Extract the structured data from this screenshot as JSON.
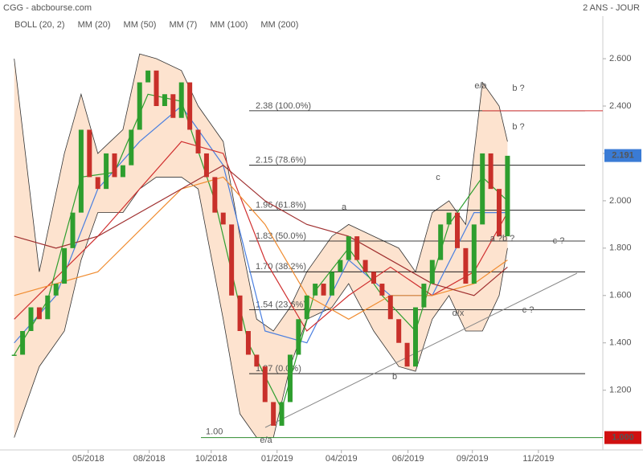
{
  "chart_data": {
    "type": "candlestick",
    "title": "CGG - abcbourse.com",
    "subtitle": "2 ANS - JOUR",
    "xlim": [
      -1.7,
      70.4
    ],
    "xticks": [
      {
        "value": 8.85,
        "label": "05/2018"
      },
      {
        "value": 16.15,
        "label": "08/2018"
      },
      {
        "value": 23.56,
        "label": "10/2018"
      },
      {
        "value": 31.44,
        "label": "01/2019"
      },
      {
        "value": 39.13,
        "label": "04/2019"
      },
      {
        "value": 47.1,
        "label": "06/2019"
      },
      {
        "value": 54.8,
        "label": "09/2019"
      },
      {
        "value": 62.7,
        "label": "11/2019"
      }
    ],
    "ylim": [
      0.88,
      2.78
    ],
    "yticks": [
      {
        "value": 1.2,
        "label": "1.200"
      },
      {
        "value": 1.4,
        "label": "1.400"
      },
      {
        "value": 1.6,
        "label": "1.600"
      },
      {
        "value": 1.8,
        "label": "1.800"
      },
      {
        "value": 2.0,
        "label": "2.000"
      },
      {
        "value": 2.2,
        "label": "2.200"
      },
      {
        "value": 2.4,
        "label": "2.400"
      },
      {
        "value": 2.6,
        "label": "2.600"
      }
    ],
    "up_color": "#2e9e2e",
    "down_color": "#c8302a",
    "values": [
      1.35,
      1.45,
      1.55,
      1.5,
      1.6,
      1.65,
      1.8,
      1.95,
      2.3,
      2.1,
      2.05,
      2.2,
      2.1,
      2.15,
      2.3,
      2.5,
      2.55,
      2.4,
      2.45,
      2.35,
      2.5,
      2.3,
      2.2,
      2.1,
      1.95,
      1.9,
      1.6,
      1.45,
      1.35,
      1.3,
      1.15,
      1.05,
      1.15,
      1.35,
      1.5,
      1.6,
      1.65,
      1.6,
      1.7,
      1.75,
      1.85,
      1.75,
      1.7,
      1.65,
      1.6,
      1.5,
      1.4,
      1.3,
      1.55,
      1.65,
      1.75,
      1.9,
      1.95,
      1.8,
      1.65,
      1.9,
      2.2,
      2.05,
      1.85,
      2.19
    ],
    "last_price": {
      "value": 2.191,
      "label": "2.191",
      "color": "#3a7bd5"
    },
    "band": {
      "name": "BOLL (20, 2)",
      "color": "#333333",
      "fill": "#fde3cf",
      "x": [
        0,
        3,
        6,
        8,
        10,
        13,
        15,
        17,
        20,
        22,
        25,
        27,
        29,
        31,
        33,
        35,
        38,
        40,
        43,
        46,
        48,
        50,
        52,
        54,
        56,
        58,
        59
      ],
      "upper": [
        2.6,
        1.7,
        2.2,
        2.45,
        2.2,
        2.3,
        2.62,
        2.6,
        2.55,
        2.4,
        2.25,
        1.85,
        1.5,
        1.45,
        1.55,
        1.7,
        1.85,
        1.9,
        1.85,
        1.8,
        1.7,
        1.95,
        2.0,
        1.9,
        2.5,
        2.4,
        2.25
      ],
      "lower": [
        1.0,
        1.3,
        1.45,
        1.75,
        1.95,
        1.95,
        2.05,
        2.1,
        2.1,
        2.05,
        1.5,
        1.1,
        1.0,
        1.0,
        1.3,
        1.5,
        1.55,
        1.65,
        1.45,
        1.3,
        1.28,
        1.5,
        1.6,
        1.45,
        1.45,
        1.6,
        1.8
      ]
    },
    "series": [
      {
        "name": "MM (20)",
        "color": "#4a7fe0",
        "x": [
          0,
          5,
          10,
          15,
          20,
          25,
          30,
          35,
          40,
          45,
          50,
          55,
          59
        ],
        "values": [
          1.4,
          1.6,
          2.05,
          2.25,
          2.4,
          2.15,
          1.45,
          1.4,
          1.75,
          1.6,
          1.6,
          1.95,
          1.95
        ]
      },
      {
        "name": "MM (50)",
        "color": "#d03030",
        "x": [
          0,
          10,
          20,
          25,
          30,
          35,
          40,
          45,
          50,
          55,
          59
        ],
        "values": [
          1.5,
          1.85,
          2.25,
          2.2,
          1.75,
          1.45,
          1.6,
          1.72,
          1.6,
          1.7,
          1.95
        ]
      },
      {
        "name": "MM (7)",
        "color": "#2e9e2e",
        "x": [
          0,
          4,
          8,
          12,
          16,
          20,
          24,
          28,
          32,
          36,
          40,
          44,
          48,
          52,
          56,
          59
        ],
        "values": [
          1.35,
          1.58,
          2.1,
          2.12,
          2.45,
          2.42,
          2.0,
          1.4,
          1.12,
          1.62,
          1.8,
          1.6,
          1.45,
          1.9,
          2.1,
          2.0
        ]
      },
      {
        "name": "MM (100)",
        "color": "#f08c30",
        "x": [
          0,
          10,
          20,
          25,
          30,
          35,
          40,
          45,
          50,
          55,
          59
        ],
        "values": [
          1.6,
          1.7,
          2.05,
          2.1,
          1.9,
          1.6,
          1.5,
          1.6,
          1.6,
          1.65,
          1.75
        ]
      },
      {
        "name": "MM (200)",
        "color": "#a03030",
        "x": [
          0,
          5,
          10,
          15,
          20,
          25,
          30,
          35,
          40,
          45,
          50,
          55,
          59
        ],
        "values": [
          1.85,
          1.8,
          1.85,
          1.95,
          2.05,
          2.15,
          2.0,
          1.9,
          1.85,
          1.75,
          1.65,
          1.6,
          1.72
        ]
      }
    ],
    "levels": [
      {
        "value": 2.38,
        "label": "2.38  (100.0%)"
      },
      {
        "value": 2.15,
        "label": "2.15  (78.6%)"
      },
      {
        "value": 1.96,
        "label": "1.96  (61.8%)"
      },
      {
        "value": 1.83,
        "label": "1.83  (50.0%)"
      },
      {
        "value": 1.7,
        "label": "1.70  (38.2%)"
      },
      {
        "value": 1.54,
        "label": "1.54  (23.6%)"
      },
      {
        "value": 1.27,
        "label": "1.27  (0.0%)"
      }
    ],
    "support": {
      "value": 1.0,
      "label": "1.00",
      "badge": "1.000",
      "color": "#2e8b2e",
      "badge_color": "#d01010"
    },
    "resistance": {
      "value": 2.38,
      "color": "#d03030"
    },
    "annotations": [
      "e/a",
      "b ?",
      "b ?",
      "c",
      "a",
      "a ?b ?",
      "c ?",
      "d/x",
      "c ?",
      "b",
      "e/a"
    ]
  }
}
